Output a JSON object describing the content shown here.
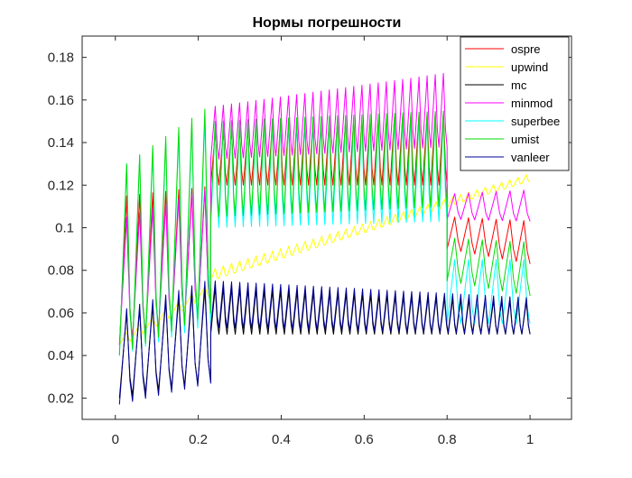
{
  "chart_data": {
    "type": "line",
    "title": "Нормы погрешности",
    "xlabel": "",
    "ylabel": "",
    "xlim": [
      -0.08,
      1.1
    ],
    "ylim": [
      0.01,
      0.19
    ],
    "xticks": [
      0,
      0.2,
      0.4,
      0.6,
      0.8,
      1
    ],
    "xtick_labels": [
      "0",
      "0.2",
      "0.4",
      "0.6",
      "0.8",
      "1"
    ],
    "yticks": [
      0.02,
      0.04,
      0.06,
      0.08,
      0.1,
      0.12,
      0.14,
      0.16,
      0.18
    ],
    "ytick_labels": [
      "0.02",
      "0.04",
      "0.06",
      "0.08",
      "0.1",
      "0.12",
      "0.14",
      "0.16",
      "0.18"
    ],
    "grid": false,
    "legend_position": "top-right",
    "series": [
      {
        "name": "ospre",
        "color": "#ff0000",
        "phases": [
          {
            "x0": 0.01,
            "x1": 0.23,
            "base_start": 0.045,
            "base_end": 0.06,
            "amp_start": 0.07,
            "amp_end": 0.06,
            "period": 0.0333
          },
          {
            "x0": 0.23,
            "x1": 0.8,
            "base_start": 0.12,
            "base_end": 0.12,
            "amp_start": 0.025,
            "amp_end": 0.035,
            "period": 0.02
          },
          {
            "x0": 0.8,
            "x1": 1.0,
            "base_start": 0.09,
            "base_end": 0.083,
            "amp_start": 0.015,
            "amp_end": 0.02,
            "period": 0.0333
          }
        ]
      },
      {
        "name": "upwind",
        "color": "#ffff00",
        "phases": [
          {
            "x0": 0.01,
            "x1": 0.23,
            "base_start": 0.045,
            "base_end": 0.07,
            "amp_start": 0.006,
            "amp_end": 0.006,
            "period": 0.0333
          },
          {
            "x0": 0.23,
            "x1": 1.0,
            "base_start": 0.075,
            "base_end": 0.122,
            "amp_start": 0.006,
            "amp_end": 0.004,
            "period": 0.02
          }
        ]
      },
      {
        "name": "mc",
        "color": "#000000",
        "phases": [
          {
            "x0": 0.01,
            "x1": 0.23,
            "base_start": 0.02,
            "base_end": 0.028,
            "amp_start": 0.04,
            "amp_end": 0.045,
            "period": 0.0333
          },
          {
            "x0": 0.23,
            "x1": 1.0,
            "base_start": 0.05,
            "base_end": 0.05,
            "amp_start": 0.022,
            "amp_end": 0.015,
            "period": 0.02
          }
        ]
      },
      {
        "name": "minmod",
        "color": "#ff00ff",
        "phases": [
          {
            "x0": 0.01,
            "x1": 0.23,
            "base_start": 0.045,
            "base_end": 0.06,
            "amp_start": 0.06,
            "amp_end": 0.06,
            "period": 0.0333
          },
          {
            "x0": 0.23,
            "x1": 0.8,
            "base_start": 0.132,
            "base_end": 0.138,
            "amp_start": 0.025,
            "amp_end": 0.035,
            "period": 0.02
          },
          {
            "x0": 0.8,
            "x1": 1.0,
            "base_start": 0.104,
            "base_end": 0.103,
            "amp_start": 0.012,
            "amp_end": 0.015,
            "period": 0.0333
          }
        ]
      },
      {
        "name": "superbee",
        "color": "#00ffff",
        "phases": [
          {
            "x0": 0.01,
            "x1": 0.23,
            "base_start": 0.04,
            "base_end": 0.055,
            "amp_start": 0.09,
            "amp_end": 0.1,
            "period": 0.0333
          },
          {
            "x0": 0.23,
            "x1": 0.8,
            "base_start": 0.1,
            "base_end": 0.103,
            "amp_start": 0.05,
            "amp_end": 0.05,
            "period": 0.02
          },
          {
            "x0": 0.8,
            "x1": 1.0,
            "base_start": 0.055,
            "base_end": 0.055,
            "amp_start": 0.03,
            "amp_end": 0.03,
            "period": 0.0333
          }
        ]
      },
      {
        "name": "umist",
        "color": "#00dd00",
        "phases": [
          {
            "x0": 0.01,
            "x1": 0.23,
            "base_start": 0.04,
            "base_end": 0.06,
            "amp_start": 0.09,
            "amp_end": 0.1,
            "period": 0.0333
          },
          {
            "x0": 0.23,
            "x1": 0.8,
            "base_start": 0.105,
            "base_end": 0.11,
            "amp_start": 0.045,
            "amp_end": 0.045,
            "period": 0.02
          },
          {
            "x0": 0.8,
            "x1": 1.0,
            "base_start": 0.075,
            "base_end": 0.068,
            "amp_start": 0.02,
            "amp_end": 0.025,
            "period": 0.0333
          }
        ]
      },
      {
        "name": "vanleer",
        "color": "#000099",
        "phases": [
          {
            "x0": 0.01,
            "x1": 0.23,
            "base_start": 0.017,
            "base_end": 0.027,
            "amp_start": 0.045,
            "amp_end": 0.05,
            "period": 0.0333
          },
          {
            "x0": 0.23,
            "x1": 1.0,
            "base_start": 0.053,
            "base_end": 0.05,
            "amp_start": 0.022,
            "amp_end": 0.017,
            "period": 0.02
          }
        ]
      }
    ]
  }
}
